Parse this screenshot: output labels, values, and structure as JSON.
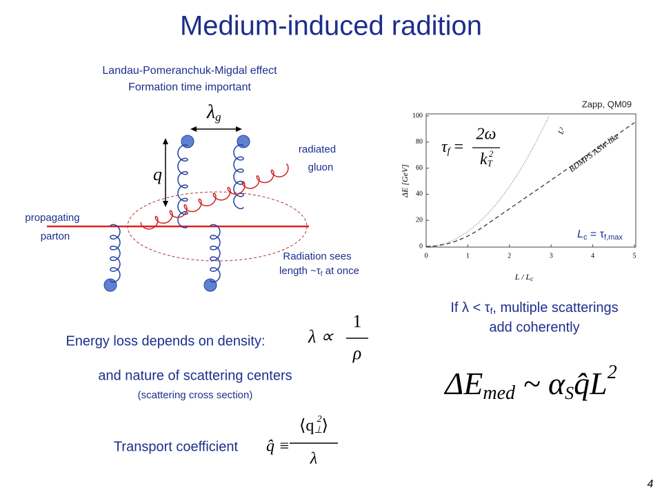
{
  "title": "Medium-induced radition",
  "lpm": {
    "line1": "Landau-Pomeranchuk-Migdal effect",
    "line2": "Formation time important"
  },
  "diagram": {
    "lambda": "λ",
    "lambda_sub": "g",
    "q": "q",
    "radiated": "radiated",
    "gluon": "gluon",
    "propagating": "propagating",
    "parton": "parton",
    "sees1": "Radiation sees",
    "sees2": {
      "a": "length ~τ",
      "b": "f",
      "c": " at once"
    }
  },
  "plot": {
    "source": "Zapp, QM09",
    "y_axis_label": "ΔE [GeV]",
    "x_axis_label": {
      "a": "L / L",
      "b": "c"
    },
    "yticks": [
      0,
      20,
      40,
      60,
      80,
      100
    ],
    "xticks": [
      0,
      1,
      2,
      3,
      4,
      5
    ],
    "curve_l2": "L²",
    "curve_bdmps": "BDMPS ASW-like",
    "formula": {
      "lhs": "τ",
      "lhs_sub": "f",
      "eq": "=",
      "num": "2ω",
      "den": "k",
      "den_sub": "T",
      "den_sup": "2"
    },
    "lc": {
      "a": "L",
      "b": "c",
      "c": " = τ",
      "d": "f,max"
    }
  },
  "coherent": {
    "line1": {
      "a": "If λ < τ",
      "b": "f",
      "c": ", multiple scatterings"
    },
    "line2": "add coherently"
  },
  "eloss_formula": {
    "a": "ΔE",
    "b": "med",
    "c": " ~ α",
    "d": "S",
    "e": "q̂L",
    "f": "2"
  },
  "density": {
    "text": "Energy loss depends on density:",
    "lhs": "λ ∝",
    "num": "1",
    "den": "ρ"
  },
  "nature": {
    "line1": "and nature of scattering centers",
    "line2": "(scattering cross section)"
  },
  "transport": {
    "text": "Transport coefficient",
    "lhs": "q̂ ≡",
    "num": "⟨q",
    "num_sub": "⊥",
    "num_sup": "2",
    "num_end": "⟩",
    "den": "λ"
  },
  "page_number": "4"
}
